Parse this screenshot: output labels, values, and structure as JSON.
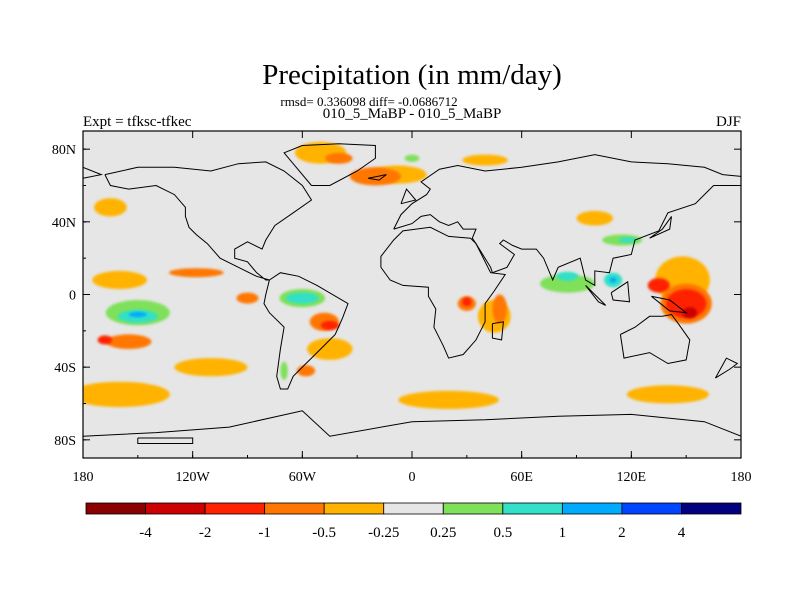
{
  "chart_data": {
    "type": "heatmap",
    "title": "Precipitation (in mm/day)",
    "stats": "rmsd= 0.336098 diff= -0.0686712",
    "subtitle": "010_5_MaBP - 010_5_MaBP",
    "left_label": "Expt = tfksc-tfkec",
    "right_label": "DJF",
    "x_ticks": [
      {
        "value": -180,
        "label": "180"
      },
      {
        "value": -120,
        "label": "120W"
      },
      {
        "value": -60,
        "label": "60W"
      },
      {
        "value": 0,
        "label": "0"
      },
      {
        "value": 60,
        "label": "60E"
      },
      {
        "value": 120,
        "label": "120E"
      },
      {
        "value": 180,
        "label": "180"
      }
    ],
    "y_ticks": [
      {
        "value": 80,
        "label": "80N"
      },
      {
        "value": 40,
        "label": "40N"
      },
      {
        "value": 0,
        "label": "0"
      },
      {
        "value": -40,
        "label": "40S"
      },
      {
        "value": -80,
        "label": "80S"
      }
    ],
    "xlim": [
      -180,
      180
    ],
    "ylim": [
      -90,
      90
    ],
    "colorbar": {
      "labels": [
        "-4",
        "-2",
        "-1",
        "-0.5",
        "-0.25",
        "0.25",
        "0.5",
        "1",
        "2",
        "4"
      ],
      "colors": [
        "#8b0000",
        "#cc0000",
        "#ff2200",
        "#ff7700",
        "#ffb300",
        "#e6e6e6",
        "#7fe05a",
        "#33e0c8",
        "#00aaff",
        "#0044ff",
        "#000080"
      ]
    },
    "regions": [
      {
        "level": "-0.5",
        "color": "#ffb300",
        "lon": -160,
        "lat": -55,
        "dlon": 55,
        "dlat": 14
      },
      {
        "level": "-0.5",
        "color": "#ffb300",
        "lon": 20,
        "lat": -58,
        "dlon": 55,
        "dlat": 10
      },
      {
        "level": "-0.5",
        "color": "#ffb300",
        "lon": 140,
        "lat": -55,
        "dlon": 45,
        "dlat": 10
      },
      {
        "level": "-0.5",
        "color": "#ffb300",
        "lon": -110,
        "lat": -40,
        "dlon": 40,
        "dlat": 10
      },
      {
        "level": "-0.5",
        "color": "#ffb300",
        "lon": -160,
        "lat": 8,
        "dlon": 30,
        "dlat": 10
      },
      {
        "level": "-0.5",
        "color": "#ffb300",
        "lon": -50,
        "lat": 78,
        "dlon": 28,
        "dlat": 12
      },
      {
        "level": "-0.5",
        "color": "#ffb300",
        "lon": -8,
        "lat": 66,
        "dlon": 32,
        "dlat": 10
      },
      {
        "level": "-0.5",
        "color": "#ffb300",
        "lon": 40,
        "lat": 74,
        "dlon": 25,
        "dlat": 6
      },
      {
        "level": "-0.5",
        "color": "#ffb300",
        "lon": 148,
        "lat": 8,
        "dlon": 30,
        "dlat": 26
      },
      {
        "level": "-0.5",
        "color": "#ffb300",
        "lon": 45,
        "lat": -12,
        "dlon": 18,
        "dlat": 18
      },
      {
        "level": "-0.5",
        "color": "#ffb300",
        "lon": -45,
        "lat": -30,
        "dlon": 25,
        "dlat": 12
      },
      {
        "level": "-0.5",
        "color": "#ffb300",
        "lon": -165,
        "lat": 48,
        "dlon": 18,
        "dlat": 10
      },
      {
        "level": "-0.5",
        "color": "#ffb300",
        "lon": 100,
        "lat": 42,
        "dlon": 20,
        "dlat": 8
      },
      {
        "level": "-1",
        "color": "#ff7700",
        "lon": -155,
        "lat": -26,
        "dlon": 25,
        "dlat": 8
      },
      {
        "level": "-1",
        "color": "#ff7700",
        "lon": -118,
        "lat": 12,
        "dlon": 30,
        "dlat": 5
      },
      {
        "level": "-1",
        "color": "#ff7700",
        "lon": -20,
        "lat": 65,
        "dlon": 28,
        "dlat": 10
      },
      {
        "level": "-1",
        "color": "#ff7700",
        "lon": -40,
        "lat": 75,
        "dlon": 15,
        "dlat": 6
      },
      {
        "level": "-1",
        "color": "#ff7700",
        "lon": 150,
        "lat": -5,
        "dlon": 28,
        "dlat": 22
      },
      {
        "level": "-1",
        "color": "#ff7700",
        "lon": 48,
        "lat": -8,
        "dlon": 8,
        "dlat": 16
      },
      {
        "level": "-1",
        "color": "#ff7700",
        "lon": 30,
        "lat": -5,
        "dlon": 10,
        "dlat": 8
      },
      {
        "level": "-1",
        "color": "#ff7700",
        "lon": -58,
        "lat": -42,
        "dlon": 10,
        "dlat": 6
      },
      {
        "level": "-1",
        "color": "#ff7700",
        "lon": -48,
        "lat": -15,
        "dlon": 16,
        "dlat": 10
      },
      {
        "level": "-1",
        "color": "#ff7700",
        "lon": -90,
        "lat": -2,
        "dlon": 12,
        "dlat": 6
      },
      {
        "level": "-2",
        "color": "#ff2200",
        "lon": 150,
        "lat": -5,
        "dlon": 22,
        "dlat": 16
      },
      {
        "level": "-2",
        "color": "#ff2200",
        "lon": 135,
        "lat": 5,
        "dlon": 12,
        "dlat": 8
      },
      {
        "level": "-2",
        "color": "#ff2200",
        "lon": -45,
        "lat": -17,
        "dlon": 10,
        "dlat": 5
      },
      {
        "level": "-2",
        "color": "#ff2200",
        "lon": 30,
        "lat": -4,
        "dlon": 5,
        "dlat": 5
      },
      {
        "level": "-2",
        "color": "#ff2200",
        "lon": -168,
        "lat": -25,
        "dlon": 8,
        "dlat": 5
      },
      {
        "level": "-4",
        "color": "#cc0000",
        "lon": 152,
        "lat": -10,
        "dlon": 8,
        "dlat": 6
      },
      {
        "level": "0.5",
        "color": "#7fe05a",
        "lon": -150,
        "lat": -10,
        "dlon": 35,
        "dlat": 14
      },
      {
        "level": "0.5",
        "color": "#7fe05a",
        "lon": -60,
        "lat": -2,
        "dlon": 25,
        "dlat": 10
      },
      {
        "level": "0.5",
        "color": "#7fe05a",
        "lon": 85,
        "lat": 6,
        "dlon": 30,
        "dlat": 10
      },
      {
        "level": "0.5",
        "color": "#7fe05a",
        "lon": 115,
        "lat": 30,
        "dlon": 22,
        "dlat": 6
      },
      {
        "level": "0.5",
        "color": "#7fe05a",
        "lon": -70,
        "lat": -42,
        "dlon": 4,
        "dlat": 10
      },
      {
        "level": "0.5",
        "color": "#7fe05a",
        "lon": 0,
        "lat": 75,
        "dlon": 8,
        "dlat": 4
      },
      {
        "level": "1",
        "color": "#33e0c8",
        "lon": -150,
        "lat": -12,
        "dlon": 22,
        "dlat": 7
      },
      {
        "level": "1",
        "color": "#33e0c8",
        "lon": -60,
        "lat": -2,
        "dlon": 18,
        "dlat": 6
      },
      {
        "level": "1",
        "color": "#33e0c8",
        "lon": 85,
        "lat": 10,
        "dlon": 12,
        "dlat": 5
      },
      {
        "level": "1",
        "color": "#33e0c8",
        "lon": 110,
        "lat": 8,
        "dlon": 10,
        "dlat": 8
      },
      {
        "level": "1",
        "color": "#33e0c8",
        "lon": 118,
        "lat": 30,
        "dlon": 10,
        "dlat": 3
      },
      {
        "level": "2",
        "color": "#00aaff",
        "lon": -150,
        "lat": -11,
        "dlon": 10,
        "dlat": 3
      },
      {
        "level": "2",
        "color": "#00aaff",
        "lon": 110,
        "lat": 8,
        "dlon": 4,
        "dlat": 3
      }
    ]
  },
  "coastlines": [
    [
      [
        -168,
        66
      ],
      [
        -150,
        70
      ],
      [
        -130,
        70
      ],
      [
        -110,
        68
      ],
      [
        -95,
        72
      ],
      [
        -80,
        73
      ],
      [
        -70,
        68
      ],
      [
        -60,
        60
      ],
      [
        -55,
        52
      ],
      [
        -65,
        45
      ],
      [
        -75,
        38
      ],
      [
        -80,
        30
      ],
      [
        -82,
        25
      ],
      [
        -90,
        29
      ],
      [
        -97,
        25
      ],
      [
        -97,
        20
      ],
      [
        -90,
        18
      ],
      [
        -85,
        12
      ],
      [
        -80,
        8
      ],
      [
        -78,
        8
      ],
      [
        -85,
        10
      ],
      [
        -95,
        15
      ],
      [
        -105,
        20
      ],
      [
        -112,
        28
      ],
      [
        -118,
        33
      ],
      [
        -122,
        37
      ],
      [
        -124,
        43
      ],
      [
        -124,
        48
      ],
      [
        -130,
        55
      ],
      [
        -140,
        60
      ],
      [
        -155,
        58
      ],
      [
        -165,
        60
      ],
      [
        -168,
        66
      ]
    ],
    [
      [
        -78,
        8
      ],
      [
        -72,
        12
      ],
      [
        -62,
        10
      ],
      [
        -52,
        5
      ],
      [
        -35,
        -5
      ],
      [
        -38,
        -13
      ],
      [
        -42,
        -22
      ],
      [
        -48,
        -28
      ],
      [
        -55,
        -35
      ],
      [
        -58,
        -38
      ],
      [
        -65,
        -45
      ],
      [
        -68,
        -52
      ],
      [
        -72,
        -52
      ],
      [
        -74,
        -45
      ],
      [
        -72,
        -30
      ],
      [
        -70,
        -18
      ],
      [
        -78,
        -10
      ],
      [
        -81,
        -5
      ],
      [
        -80,
        0
      ],
      [
        -78,
        8
      ]
    ],
    [
      [
        -55,
        60
      ],
      [
        -45,
        60
      ],
      [
        -30,
        68
      ],
      [
        -20,
        75
      ],
      [
        -20,
        82
      ],
      [
        -40,
        83
      ],
      [
        -60,
        82
      ],
      [
        -70,
        78
      ],
      [
        -65,
        72
      ],
      [
        -55,
        60
      ]
    ],
    [
      [
        -10,
        36
      ],
      [
        -6,
        44
      ],
      [
        0,
        50
      ],
      [
        8,
        55
      ],
      [
        10,
        58
      ],
      [
        5,
        62
      ],
      [
        15,
        69
      ],
      [
        25,
        71
      ],
      [
        40,
        68
      ],
      [
        60,
        70
      ],
      [
        80,
        73
      ],
      [
        100,
        77
      ],
      [
        120,
        73
      ],
      [
        140,
        72
      ],
      [
        160,
        70
      ],
      [
        170,
        66
      ],
      [
        180,
        65
      ],
      [
        180,
        60
      ],
      [
        165,
        60
      ],
      [
        160,
        55
      ],
      [
        155,
        50
      ],
      [
        140,
        45
      ],
      [
        135,
        35
      ],
      [
        122,
        30
      ],
      [
        120,
        22
      ],
      [
        110,
        20
      ],
      [
        108,
        12
      ],
      [
        100,
        13
      ],
      [
        100,
        5
      ],
      [
        95,
        8
      ],
      [
        92,
        20
      ],
      [
        80,
        15
      ],
      [
        77,
        8
      ],
      [
        72,
        20
      ],
      [
        68,
        25
      ],
      [
        60,
        25
      ],
      [
        55,
        27
      ],
      [
        50,
        30
      ],
      [
        48,
        28
      ],
      [
        56,
        22
      ],
      [
        52,
        15
      ],
      [
        44,
        12
      ],
      [
        43,
        15
      ],
      [
        35,
        28
      ],
      [
        33,
        31
      ],
      [
        35,
        36
      ],
      [
        28,
        36
      ],
      [
        25,
        40
      ],
      [
        20,
        38
      ],
      [
        15,
        40
      ],
      [
        10,
        44
      ],
      [
        5,
        43
      ],
      [
        0,
        39
      ],
      [
        -10,
        36
      ]
    ],
    [
      [
        -17,
        15
      ],
      [
        -17,
        21
      ],
      [
        -10,
        30
      ],
      [
        -5,
        35
      ],
      [
        10,
        37
      ],
      [
        20,
        32
      ],
      [
        32,
        31
      ],
      [
        35,
        28
      ],
      [
        43,
        12
      ],
      [
        51,
        11
      ],
      [
        45,
        2
      ],
      [
        40,
        -5
      ],
      [
        40,
        -15
      ],
      [
        35,
        -25
      ],
      [
        28,
        -33
      ],
      [
        20,
        -35
      ],
      [
        17,
        -28
      ],
      [
        12,
        -18
      ],
      [
        13,
        -8
      ],
      [
        9,
        -1
      ],
      [
        9,
        4
      ],
      [
        -5,
        5
      ],
      [
        -12,
        8
      ],
      [
        -17,
        15
      ]
    ],
    [
      [
        44,
        -16
      ],
      [
        50,
        -15
      ],
      [
        49,
        -25
      ],
      [
        44,
        -24
      ],
      [
        44,
        -16
      ]
    ],
    [
      [
        114,
        -22
      ],
      [
        122,
        -18
      ],
      [
        130,
        -12
      ],
      [
        137,
        -12
      ],
      [
        142,
        -11
      ],
      [
        145,
        -15
      ],
      [
        152,
        -25
      ],
      [
        150,
        -36
      ],
      [
        140,
        -38
      ],
      [
        130,
        -32
      ],
      [
        116,
        -35
      ],
      [
        114,
        -22
      ]
    ],
    [
      [
        166,
        -46
      ],
      [
        174,
        -41
      ],
      [
        178,
        -38
      ],
      [
        172,
        -35
      ],
      [
        166,
        -46
      ]
    ],
    [
      [
        95,
        5
      ],
      [
        106,
        -6
      ],
      [
        102,
        -4
      ],
      [
        95,
        5
      ]
    ],
    [
      [
        109,
        1
      ],
      [
        118,
        7
      ],
      [
        119,
        -4
      ],
      [
        110,
        -3
      ],
      [
        109,
        1
      ]
    ],
    [
      [
        131,
        -1
      ],
      [
        141,
        -3
      ],
      [
        150,
        -10
      ],
      [
        141,
        -9
      ],
      [
        131,
        -1
      ]
    ],
    [
      [
        130,
        31
      ],
      [
        141,
        36
      ],
      [
        142,
        43
      ],
      [
        137,
        36
      ],
      [
        130,
        31
      ]
    ],
    [
      [
        -6,
        50
      ],
      [
        2,
        52
      ],
      [
        -3,
        58
      ],
      [
        -6,
        50
      ]
    ],
    [
      [
        -24,
        64
      ],
      [
        -14,
        66
      ],
      [
        -18,
        63
      ],
      [
        -24,
        64
      ]
    ],
    [
      [
        -180,
        -78
      ],
      [
        -140,
        -76
      ],
      [
        -100,
        -73
      ],
      [
        -60,
        -64
      ],
      [
        -45,
        -78
      ],
      [
        0,
        -70
      ],
      [
        40,
        -69
      ],
      [
        80,
        -67
      ],
      [
        120,
        -66
      ],
      [
        160,
        -70
      ],
      [
        180,
        -78
      ]
    ],
    [
      [
        -150,
        -79
      ],
      [
        -120,
        -79
      ],
      [
        -120,
        -82
      ],
      [
        -150,
        -82
      ],
      [
        -150,
        -79
      ]
    ],
    [
      [
        -180,
        70
      ],
      [
        -170,
        66
      ],
      [
        -180,
        64
      ]
    ]
  ]
}
